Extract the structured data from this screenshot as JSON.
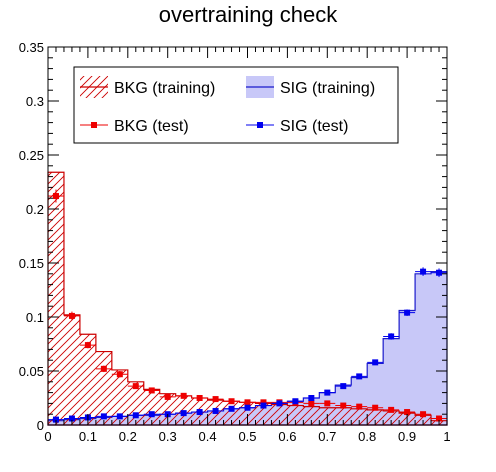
{
  "chart_data": {
    "type": "histogram",
    "title": "overtraining check",
    "xlabel": "",
    "ylabel": "",
    "xlim": [
      0,
      1
    ],
    "ylim": [
      0,
      0.35
    ],
    "x_tick_labels": [
      "0",
      "0.1",
      "0.2",
      "0.3",
      "0.4",
      "0.5",
      "0.6",
      "0.7",
      "0.8",
      "0.9",
      "1"
    ],
    "y_tick_labels": [
      "0",
      "0.05",
      "0.1",
      "0.15",
      "0.2",
      "0.25",
      "0.3",
      "0.35"
    ],
    "bin_edges": [
      0,
      0.04,
      0.08,
      0.12,
      0.16,
      0.2,
      0.24,
      0.28,
      0.32,
      0.36,
      0.4,
      0.44,
      0.48,
      0.52,
      0.56,
      0.6,
      0.64,
      0.68,
      0.72,
      0.76,
      0.8,
      0.84,
      0.88,
      0.92,
      0.96,
      1.0
    ],
    "series": [
      {
        "name": "BKG (training)",
        "kind": "hatched-histogram",
        "color": "#cc0000",
        "values": [
          0.234,
          0.102,
          0.084,
          0.068,
          0.051,
          0.04,
          0.033,
          0.029,
          0.027,
          0.025,
          0.023,
          0.022,
          0.021,
          0.02,
          0.019,
          0.018,
          0.017,
          0.016,
          0.016,
          0.015,
          0.014,
          0.013,
          0.011,
          0.009,
          0.004
        ]
      },
      {
        "name": "SIG (training)",
        "kind": "filled-histogram",
        "color": "#1a1acc",
        "fill": "#c8c8f8",
        "values": [
          0.004,
          0.005,
          0.006,
          0.007,
          0.008,
          0.009,
          0.009,
          0.01,
          0.011,
          0.012,
          0.013,
          0.015,
          0.016,
          0.018,
          0.02,
          0.022,
          0.025,
          0.03,
          0.037,
          0.044,
          0.057,
          0.08,
          0.106,
          0.14,
          0.142
        ]
      },
      {
        "name": "BKG (test)",
        "kind": "points",
        "color": "#ee0000",
        "values": [
          0.212,
          0.101,
          0.074,
          0.052,
          0.047,
          0.036,
          0.032,
          0.026,
          0.027,
          0.025,
          0.024,
          0.022,
          0.021,
          0.021,
          0.021,
          0.021,
          0.02,
          0.02,
          0.018,
          0.017,
          0.016,
          0.014,
          0.012,
          0.01,
          0.006
        ],
        "errors": [
          0.006,
          0.004,
          0.003,
          0.003,
          0.003,
          0.002,
          0.002,
          0.002,
          0.002,
          0.002,
          0.002,
          0.002,
          0.002,
          0.002,
          0.002,
          0.002,
          0.002,
          0.002,
          0.002,
          0.002,
          0.002,
          0.002,
          0.002,
          0.002,
          0.001
        ]
      },
      {
        "name": "SIG (test)",
        "kind": "points",
        "color": "#0000ee",
        "values": [
          0.005,
          0.006,
          0.007,
          0.008,
          0.008,
          0.009,
          0.01,
          0.01,
          0.011,
          0.012,
          0.013,
          0.015,
          0.016,
          0.018,
          0.02,
          0.022,
          0.025,
          0.03,
          0.036,
          0.045,
          0.058,
          0.082,
          0.104,
          0.142,
          0.141
        ],
        "errors": [
          0.001,
          0.001,
          0.001,
          0.001,
          0.001,
          0.001,
          0.001,
          0.001,
          0.001,
          0.001,
          0.001,
          0.001,
          0.001,
          0.001,
          0.001,
          0.001,
          0.002,
          0.002,
          0.002,
          0.002,
          0.002,
          0.003,
          0.003,
          0.004,
          0.004
        ]
      }
    ],
    "legend": {
      "placement": "top-left",
      "entries": [
        {
          "label": "BKG (training)",
          "style": "hatched"
        },
        {
          "label": "SIG (training)",
          "style": "filled"
        },
        {
          "label": "BKG (test)",
          "style": "marker"
        },
        {
          "label": "SIG (test)",
          "style": "marker"
        }
      ]
    },
    "grid": false
  }
}
